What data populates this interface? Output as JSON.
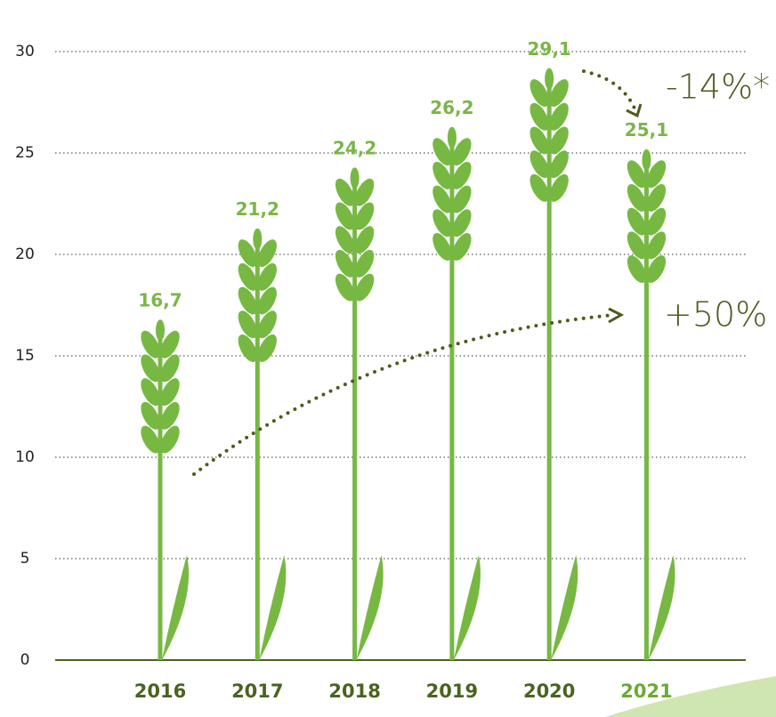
{
  "chart_data": {
    "type": "bar",
    "categories": [
      "2016",
      "2017",
      "2018",
      "2019",
      "2020",
      "2021"
    ],
    "values": [
      16.7,
      21.2,
      24.2,
      26.2,
      29.1,
      25.1
    ],
    "value_labels": [
      "16,7",
      "21,2",
      "24,2",
      "26,2",
      "29,1",
      "25,1"
    ],
    "color": "#77b843",
    "ylim": [
      0,
      30
    ],
    "yticks": [
      0,
      5,
      10,
      15,
      20,
      25,
      30
    ],
    "grid": true,
    "annotations": [
      "-14%*",
      "+50%"
    ]
  }
}
